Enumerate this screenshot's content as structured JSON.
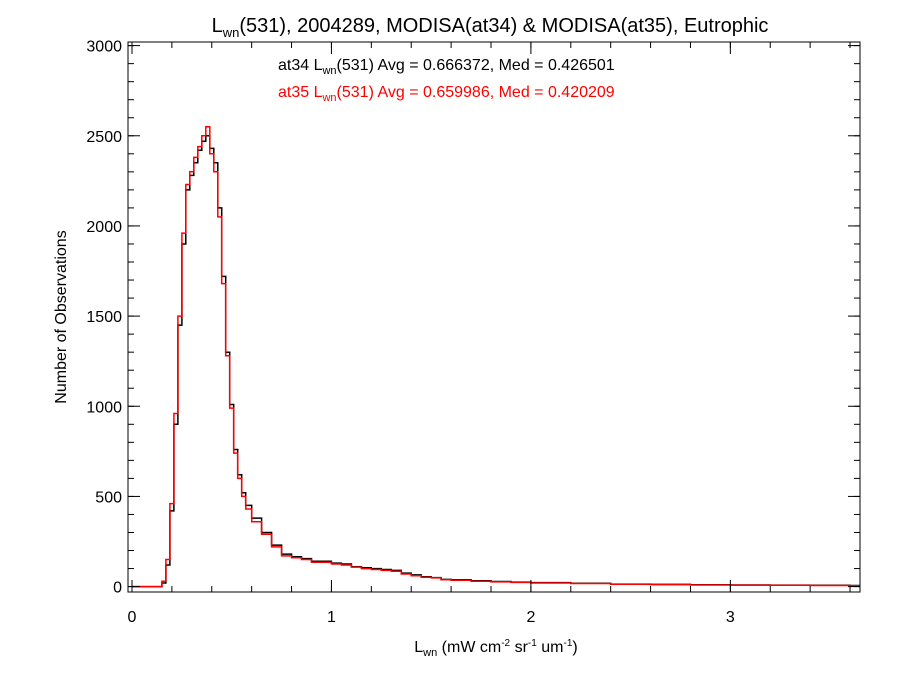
{
  "chart_data": {
    "type": "step-histogram",
    "title": {
      "main": "L",
      "sub": "wn",
      "rest": "(531), 2004289, MODISA(at34) & MODISA(at35), Eutrophic"
    },
    "xlabel": {
      "main": "L",
      "sub": "wn",
      "p1": " (mW cm",
      "sup1": "-2",
      "p2": " sr",
      "sup2": "-1",
      "p3": " um",
      "sup3": "-1",
      "p4": ")"
    },
    "ylabel": "Number of Observations",
    "xlim": [
      -0.02,
      3.65
    ],
    "ylim": [
      -30,
      3020
    ],
    "x_ticks": [
      0,
      1,
      2,
      3
    ],
    "x_tick_labels": [
      "0",
      "1",
      "2",
      "3"
    ],
    "y_ticks": [
      0,
      500,
      1000,
      1500,
      2000,
      2500,
      3000
    ],
    "y_tick_labels": [
      "0",
      "500",
      "1000",
      "1500",
      "2000",
      "2500",
      "3000"
    ],
    "legend": [
      {
        "color": "#000000",
        "pre": "at34 L",
        "sub": "wn",
        "post": "(531) Avg = 0.666372, Med = 0.426501"
      },
      {
        "color": "#ff0000",
        "pre": "at35 L",
        "sub": "wn",
        "post": "(531) Avg = 0.659986, Med = 0.420209"
      }
    ],
    "series": [
      {
        "color": "#000000",
        "x": [
          0,
          0.05,
          0.1,
          0.15,
          0.17,
          0.19,
          0.21,
          0.23,
          0.25,
          0.27,
          0.29,
          0.31,
          0.33,
          0.35,
          0.37,
          0.39,
          0.41,
          0.43,
          0.45,
          0.47,
          0.49,
          0.51,
          0.53,
          0.55,
          0.57,
          0.6,
          0.65,
          0.7,
          0.75,
          0.8,
          0.85,
          0.9,
          0.95,
          1.0,
          1.05,
          1.1,
          1.15,
          1.2,
          1.25,
          1.3,
          1.35,
          1.4,
          1.45,
          1.5,
          1.55,
          1.6,
          1.7,
          1.8,
          1.9,
          2.0,
          2.2,
          2.4,
          2.6,
          2.8,
          3.0,
          3.2,
          3.4,
          3.6
        ],
        "y": [
          0,
          0,
          0,
          20,
          120,
          420,
          900,
          1450,
          1900,
          2200,
          2280,
          2350,
          2420,
          2470,
          2500,
          2430,
          2350,
          2100,
          1720,
          1300,
          1010,
          760,
          620,
          520,
          450,
          380,
          300,
          230,
          180,
          165,
          155,
          140,
          140,
          130,
          125,
          110,
          105,
          100,
          95,
          90,
          75,
          65,
          55,
          50,
          40,
          38,
          32,
          28,
          25,
          22,
          18,
          14,
          12,
          10,
          9,
          8,
          7,
          6
        ]
      },
      {
        "color": "#ff0000",
        "x": [
          0,
          0.05,
          0.1,
          0.15,
          0.17,
          0.19,
          0.21,
          0.23,
          0.25,
          0.27,
          0.29,
          0.31,
          0.33,
          0.35,
          0.37,
          0.39,
          0.41,
          0.43,
          0.45,
          0.47,
          0.49,
          0.51,
          0.53,
          0.55,
          0.57,
          0.6,
          0.65,
          0.7,
          0.75,
          0.8,
          0.85,
          0.9,
          0.95,
          1.0,
          1.05,
          1.1,
          1.15,
          1.2,
          1.25,
          1.3,
          1.35,
          1.4,
          1.45,
          1.5,
          1.55,
          1.6,
          1.7,
          1.8,
          1.9,
          2.0,
          2.2,
          2.4,
          2.6,
          2.8,
          3.0,
          3.2,
          3.4,
          3.6
        ],
        "y": [
          0,
          0,
          0,
          30,
          150,
          460,
          960,
          1500,
          1960,
          2230,
          2300,
          2380,
          2440,
          2500,
          2550,
          2400,
          2300,
          2050,
          1680,
          1280,
          990,
          740,
          600,
          500,
          430,
          360,
          290,
          220,
          170,
          160,
          150,
          135,
          135,
          125,
          120,
          108,
          100,
          95,
          90,
          85,
          70,
          60,
          52,
          48,
          38,
          35,
          30,
          26,
          23,
          20,
          17,
          13,
          11,
          9,
          8,
          7,
          6,
          5
        ]
      }
    ],
    "grid": false
  }
}
